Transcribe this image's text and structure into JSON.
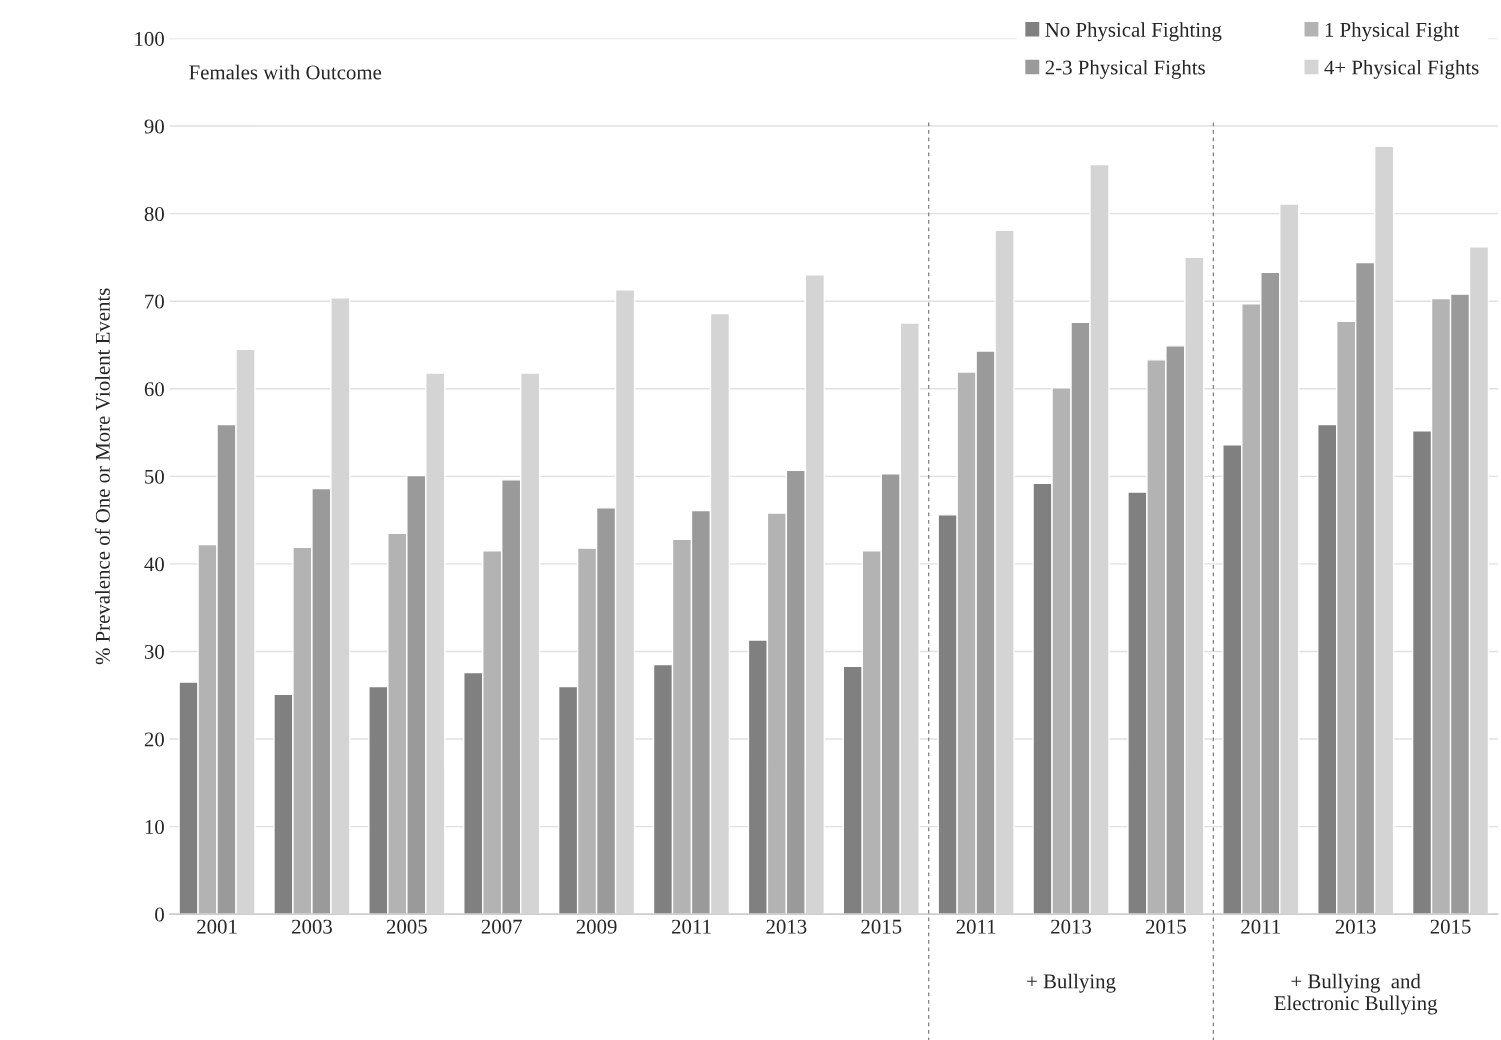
{
  "chart_data": {
    "type": "bar",
    "ylabel": "% Prevalence of One or More Violent Events",
    "categories": [
      "2001",
      "2003",
      "2005",
      "2007",
      "2009",
      "2011",
      "2013",
      "2015",
      "2011",
      "2013",
      "2015",
      "2011",
      "2013",
      "2015"
    ],
    "series": [
      {
        "name": "No Physical Fighting",
        "color": "#808080",
        "values": [
          26.5,
          25.1,
          26.0,
          27.6,
          26.0,
          28.5,
          31.3,
          28.3,
          45.6,
          49.2,
          48.2,
          53.6,
          55.9,
          55.2
        ]
      },
      {
        "name": "1 Physical Fight",
        "color": "#b3b3b3",
        "values": [
          42.2,
          41.9,
          43.5,
          41.5,
          41.8,
          42.8,
          45.8,
          41.5,
          61.9,
          60.1,
          63.3,
          69.7,
          67.7,
          70.3
        ]
      },
      {
        "name": "2-3 Physical Fights",
        "color": "#9a9a9a",
        "values": [
          55.9,
          48.6,
          50.1,
          49.6,
          46.4,
          46.1,
          50.7,
          50.3,
          64.3,
          67.6,
          64.9,
          73.3,
          74.4,
          70.8
        ]
      },
      {
        "name": "4+ Physical Fights",
        "color": "#d4d4d4",
        "values": [
          64.5,
          70.4,
          61.8,
          61.8,
          71.3,
          68.6,
          73.0,
          67.5,
          78.1,
          85.6,
          75.0,
          81.1,
          87.7,
          76.2
        ]
      }
    ],
    "ylim": [
      0,
      100
    ],
    "yticks": [
      0,
      10,
      20,
      30,
      40,
      50,
      60,
      70,
      80,
      90,
      100
    ],
    "grid": "y",
    "legend": "top right",
    "annotations": [
      "Females with Outcome",
      "+ Bullying",
      "+ Bullying  and\nElectronic Bullying"
    ]
  }
}
